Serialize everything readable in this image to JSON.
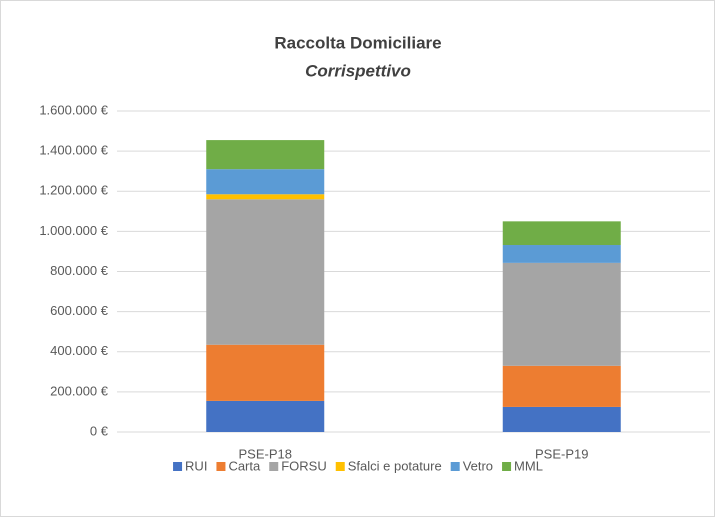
{
  "chart_data": {
    "type": "stacked_bar",
    "title": "Raccolta Domiciliare",
    "subtitle": "Corrispettivo",
    "categories": [
      "PSE-P18",
      "PSE-P19"
    ],
    "series": [
      {
        "name": "RUI",
        "color": "#4472c4",
        "values": [
          155000,
          125000
        ]
      },
      {
        "name": "Carta",
        "color": "#ed7d31",
        "values": [
          280000,
          205000
        ]
      },
      {
        "name": "FORSU",
        "color": "#a5a5a5",
        "values": [
          725000,
          513000
        ]
      },
      {
        "name": "Sfalci e potature",
        "color": "#ffc000",
        "values": [
          25000,
          0
        ]
      },
      {
        "name": "Vetro",
        "color": "#5b9bd5",
        "values": [
          125000,
          89000
        ]
      },
      {
        "name": "MML",
        "color": "#70ad47",
        "values": [
          145000,
          118000
        ]
      }
    ],
    "ylim": [
      0,
      1600000
    ],
    "yticks": [
      {
        "value": 0,
        "label": "0 €"
      },
      {
        "value": 200000,
        "label": "200.000 €"
      },
      {
        "value": 400000,
        "label": "400.000 €"
      },
      {
        "value": 600000,
        "label": "600.000 €"
      },
      {
        "value": 800000,
        "label": "800.000 €"
      },
      {
        "value": 1000000,
        "label": "1.000.000 €"
      },
      {
        "value": 1200000,
        "label": "1.200.000 €"
      },
      {
        "value": 1400000,
        "label": "1.400.000 €"
      },
      {
        "value": 1600000,
        "label": "1.600.000 €"
      }
    ],
    "grid": true,
    "legend": "bottom"
  }
}
